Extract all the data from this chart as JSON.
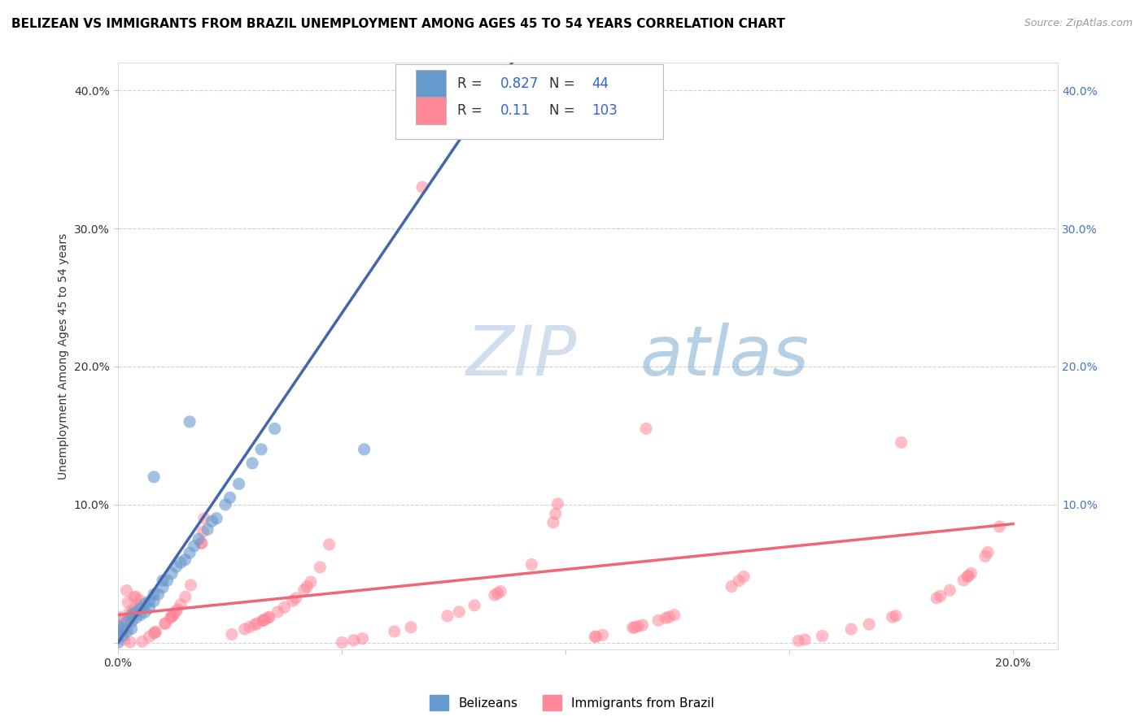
{
  "title": "BELIZEAN VS IMMIGRANTS FROM BRAZIL UNEMPLOYMENT AMONG AGES 45 TO 54 YEARS CORRELATION CHART",
  "source": "Source: ZipAtlas.com",
  "ylabel": "Unemployment Among Ages 45 to 54 years",
  "xlabel": "",
  "xlim": [
    0.0,
    0.21
  ],
  "ylim": [
    -0.005,
    0.42
  ],
  "xticks": [
    0.0,
    0.05,
    0.1,
    0.15,
    0.2
  ],
  "yticks": [
    0.0,
    0.1,
    0.2,
    0.3,
    0.4
  ],
  "belizean_color": "#6699CC",
  "brazil_color": "#FF8899",
  "belizean_line_color": "#4466AA",
  "brazil_line_color": "#EE6677",
  "belizean_R": 0.827,
  "belizean_N": 44,
  "brazil_R": 0.11,
  "brazil_N": 103,
  "legend_labels": [
    "Belizeans",
    "Immigrants from Brazil"
  ],
  "title_fontsize": 11,
  "label_fontsize": 10,
  "tick_fontsize": 10,
  "bel_line_x0": 0.0,
  "bel_line_y0": 0.0,
  "bel_line_x1": 0.088,
  "bel_line_y1": 0.42,
  "bra_line_x0": 0.0,
  "bra_line_y0": 0.02,
  "bra_line_x1": 0.2,
  "bra_line_y1": 0.086
}
